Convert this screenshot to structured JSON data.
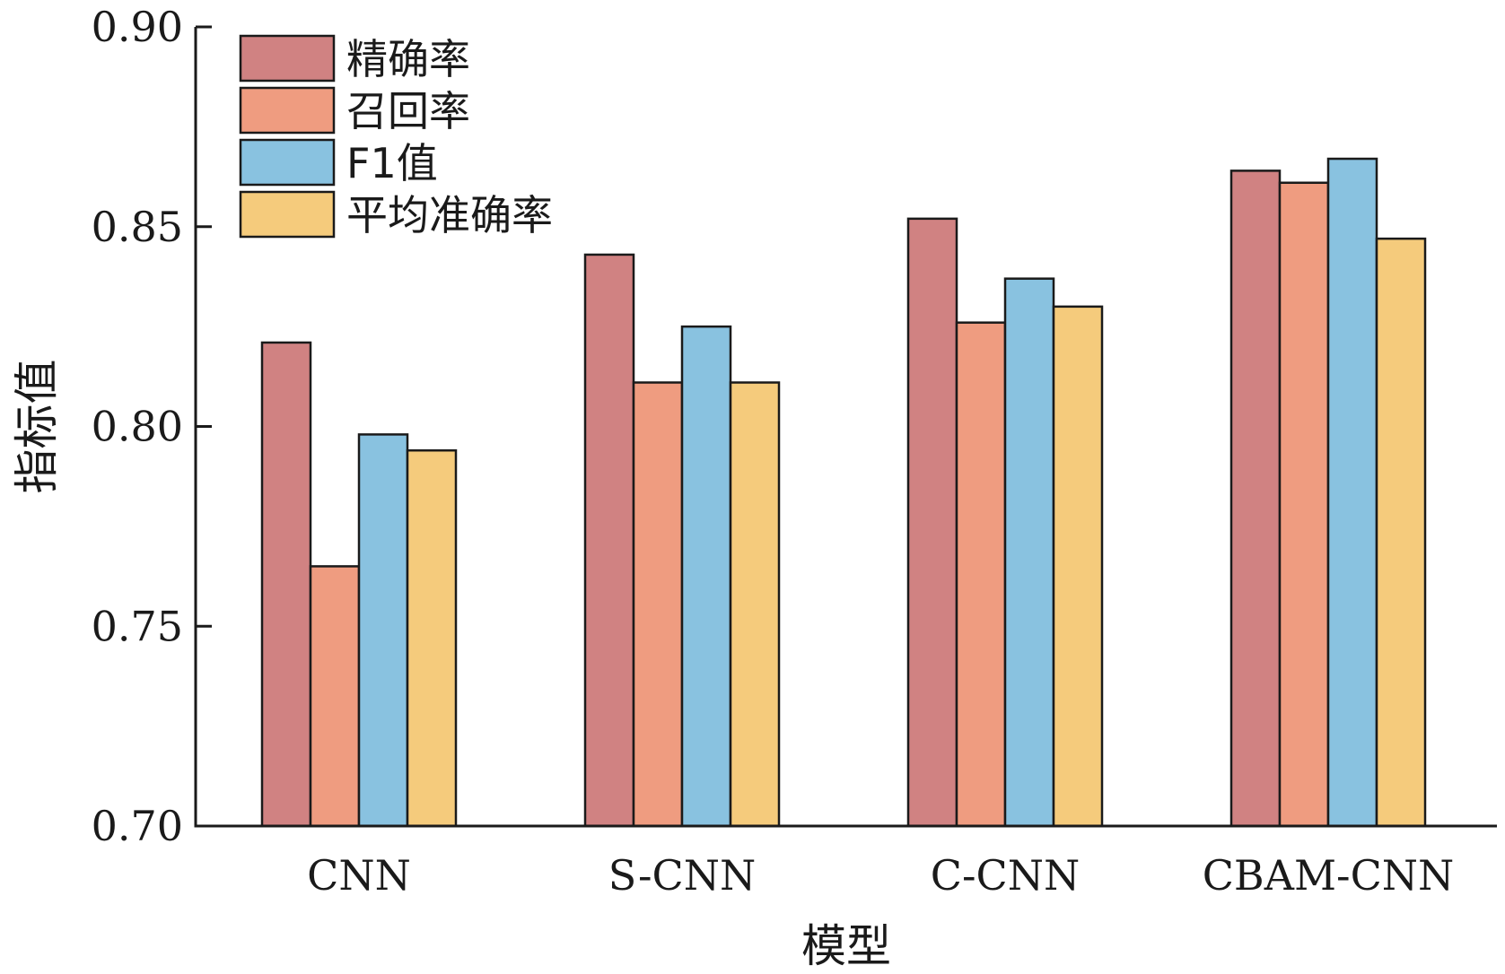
{
  "chart_data": {
    "type": "bar",
    "categories": [
      "CNN",
      "S-CNN",
      "C-CNN",
      "CBAM-CNN"
    ],
    "series": [
      {
        "name": "精确率",
        "color": "#d08282",
        "values": [
          0.821,
          0.843,
          0.852,
          0.864
        ]
      },
      {
        "name": "召回率",
        "color": "#ef9c80",
        "values": [
          0.765,
          0.811,
          0.826,
          0.861
        ]
      },
      {
        "name": "F1值",
        "color": "#89c2e0",
        "values": [
          0.798,
          0.825,
          0.837,
          0.867
        ]
      },
      {
        "name": "平均准确率",
        "color": "#f5cb7c",
        "values": [
          0.794,
          0.811,
          0.83,
          0.847
        ]
      }
    ],
    "xlabel": "模型",
    "ylabel": "指标值",
    "ylim": [
      0.7,
      0.9
    ],
    "yticks": [
      "0.70",
      "0.75",
      "0.80",
      "0.85",
      "0.90"
    ],
    "legend_position": "top-left",
    "grid": false
  }
}
